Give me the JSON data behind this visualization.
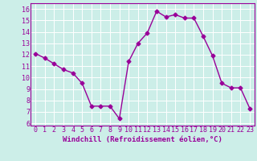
{
  "x": [
    0,
    1,
    2,
    3,
    4,
    5,
    6,
    7,
    8,
    9,
    10,
    11,
    12,
    13,
    14,
    15,
    16,
    17,
    18,
    19,
    20,
    21,
    22,
    23
  ],
  "y": [
    12.1,
    11.7,
    11.2,
    10.7,
    10.4,
    9.5,
    7.5,
    7.5,
    7.5,
    6.4,
    11.4,
    13.0,
    13.9,
    15.8,
    15.3,
    15.5,
    15.2,
    15.2,
    13.6,
    11.9,
    9.5,
    9.1,
    9.1,
    7.3
  ],
  "line_color": "#990099",
  "marker": "D",
  "markersize": 2.5,
  "linewidth": 1.0,
  "bg_color": "#cceee8",
  "grid_color": "#ffffff",
  "xlabel": "Windchill (Refroidissement éolien,°C)",
  "xlabel_fontsize": 6.5,
  "tick_fontsize": 6.0,
  "xlim": [
    -0.5,
    23.5
  ],
  "ylim": [
    5.8,
    16.5
  ],
  "yticks": [
    6,
    7,
    8,
    9,
    10,
    11,
    12,
    13,
    14,
    15,
    16
  ],
  "xticks": [
    0,
    1,
    2,
    3,
    4,
    5,
    6,
    7,
    8,
    9,
    10,
    11,
    12,
    13,
    14,
    15,
    16,
    17,
    18,
    19,
    20,
    21,
    22,
    23
  ]
}
